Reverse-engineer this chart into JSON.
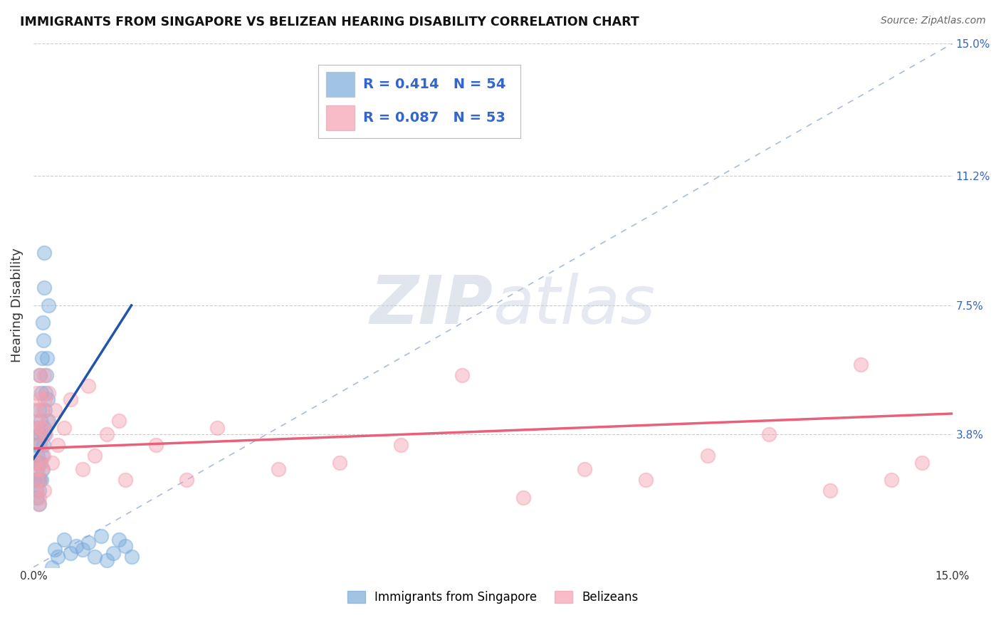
{
  "title": "IMMIGRANTS FROM SINGAPORE VS BELIZEAN HEARING DISABILITY CORRELATION CHART",
  "source": "Source: ZipAtlas.com",
  "ylabel": "Hearing Disability",
  "xlim": [
    0.0,
    0.15
  ],
  "ylim": [
    0.0,
    0.15
  ],
  "ytick_labels_right": [
    "3.8%",
    "7.5%",
    "11.2%",
    "15.0%"
  ],
  "ytick_vals_right": [
    0.038,
    0.075,
    0.112,
    0.15
  ],
  "legend1_R": "0.414",
  "legend1_N": "54",
  "legend2_R": "0.087",
  "legend2_N": "53",
  "scatter_blue_color": "#7AABDB",
  "scatter_pink_color": "#F4A0B0",
  "trend_blue_color": "#2255AA",
  "trend_pink_color": "#E8607A",
  "diag_color": "#AABBDD",
  "watermark_color": "#CCCCDD",
  "background_color": "#FFFFFF",
  "grid_color": "#CCCCCC",
  "singapore_x": [
    0.0003,
    0.0004,
    0.0005,
    0.0005,
    0.0006,
    0.0006,
    0.0007,
    0.0007,
    0.0008,
    0.0008,
    0.0009,
    0.0009,
    0.001,
    0.001,
    0.001,
    0.0011,
    0.0011,
    0.0011,
    0.0012,
    0.0012,
    0.0013,
    0.0013,
    0.0014,
    0.0014,
    0.0015,
    0.0015,
    0.0016,
    0.0016,
    0.0017,
    0.0017,
    0.0018,
    0.0018,
    0.0019,
    0.002,
    0.0021,
    0.0022,
    0.0023,
    0.0024,
    0.0025,
    0.003,
    0.0035,
    0.004,
    0.005,
    0.006,
    0.007,
    0.008,
    0.009,
    0.01,
    0.011,
    0.012,
    0.013,
    0.014,
    0.015,
    0.016
  ],
  "singapore_y": [
    0.025,
    0.03,
    0.022,
    0.035,
    0.02,
    0.028,
    0.032,
    0.04,
    0.025,
    0.038,
    0.018,
    0.03,
    0.022,
    0.035,
    0.045,
    0.025,
    0.038,
    0.055,
    0.03,
    0.042,
    0.025,
    0.05,
    0.032,
    0.06,
    0.028,
    0.07,
    0.035,
    0.065,
    0.038,
    0.08,
    0.04,
    0.09,
    0.045,
    0.05,
    0.055,
    0.06,
    0.048,
    0.075,
    0.042,
    0.0,
    0.005,
    0.003,
    0.008,
    0.004,
    0.006,
    0.005,
    0.007,
    0.003,
    0.009,
    0.002,
    0.004,
    0.008,
    0.006,
    0.003
  ],
  "belizean_x": [
    0.0003,
    0.0004,
    0.0005,
    0.0005,
    0.0006,
    0.0006,
    0.0007,
    0.0007,
    0.0008,
    0.0008,
    0.0009,
    0.0009,
    0.001,
    0.001,
    0.0011,
    0.0012,
    0.0013,
    0.0014,
    0.0015,
    0.0016,
    0.0017,
    0.0018,
    0.0019,
    0.002,
    0.0022,
    0.0025,
    0.003,
    0.0035,
    0.004,
    0.005,
    0.006,
    0.008,
    0.009,
    0.01,
    0.012,
    0.014,
    0.015,
    0.02,
    0.025,
    0.03,
    0.04,
    0.05,
    0.06,
    0.07,
    0.08,
    0.09,
    0.1,
    0.11,
    0.12,
    0.13,
    0.135,
    0.14,
    0.145
  ],
  "belizean_y": [
    0.03,
    0.04,
    0.025,
    0.045,
    0.022,
    0.05,
    0.028,
    0.042,
    0.018,
    0.038,
    0.02,
    0.055,
    0.025,
    0.048,
    0.03,
    0.035,
    0.04,
    0.028,
    0.045,
    0.032,
    0.055,
    0.022,
    0.048,
    0.038,
    0.042,
    0.05,
    0.03,
    0.045,
    0.035,
    0.04,
    0.048,
    0.028,
    0.052,
    0.032,
    0.038,
    0.042,
    0.025,
    0.035,
    0.025,
    0.04,
    0.028,
    0.03,
    0.035,
    0.055,
    0.02,
    0.028,
    0.025,
    0.032,
    0.038,
    0.022,
    0.058,
    0.025,
    0.03
  ],
  "sg_trend_x0": 0.0,
  "sg_trend_y0": 0.031,
  "sg_trend_x1": 0.016,
  "sg_trend_y1": 0.075,
  "bz_trend_x0": 0.0,
  "bz_trend_y0": 0.034,
  "bz_trend_x1": 0.15,
  "bz_trend_y1": 0.044
}
